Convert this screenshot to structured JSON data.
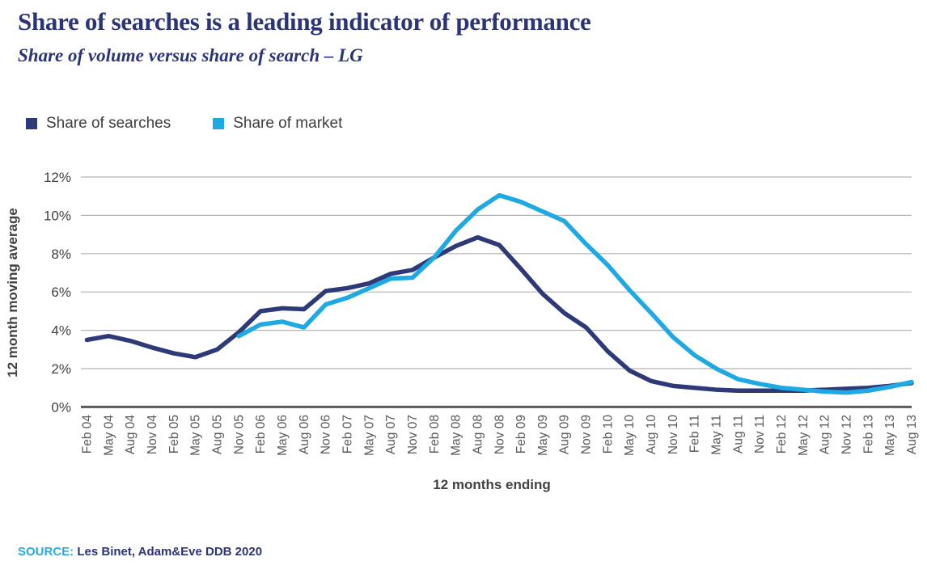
{
  "header": {
    "title": "Share of searches is a leading indicator of performance",
    "subtitle": "Share of volume versus share of search – LG"
  },
  "legend": {
    "items": [
      {
        "label": "Share of searches",
        "color": "#2e3a78"
      },
      {
        "label": "Share of market",
        "color": "#1fa9e3"
      }
    ]
  },
  "chart_data": {
    "type": "line",
    "title": "Share of volume versus share of search – LG",
    "xlabel": "12 months ending",
    "ylabel": "12 month moving average",
    "ylim": [
      0,
      12
    ],
    "yticks": [
      "0%",
      "2%",
      "4%",
      "6%",
      "8%",
      "10%",
      "12%"
    ],
    "grid": true,
    "legend_position": "top-left",
    "categories": [
      "Feb 04",
      "May 04",
      "Aug 04",
      "Nov 04",
      "Feb 05",
      "May 05",
      "Aug 05",
      "Nov 05",
      "Feb 06",
      "May 06",
      "Aug 06",
      "Nov 06",
      "Feb 07",
      "May 07",
      "Aug 07",
      "Nov 07",
      "Feb 08",
      "May 08",
      "Aug 08",
      "Nov 08",
      "Feb 09",
      "May 09",
      "Aug 09",
      "Nov 09",
      "Feb 10",
      "May 10",
      "Aug 10",
      "Nov 10",
      "Feb 11",
      "May 11",
      "Aug 11",
      "Nov 11",
      "Feb 12",
      "May 12",
      "Aug 12",
      "Nov 12",
      "Feb 13",
      "May 13",
      "Aug 13"
    ],
    "series": [
      {
        "name": "Share of searches",
        "color": "#2e3a78",
        "values": [
          3.5,
          3.7,
          3.45,
          3.1,
          2.8,
          2.6,
          3.0,
          3.9,
          5.0,
          5.15,
          5.1,
          6.05,
          6.2,
          6.45,
          6.95,
          7.15,
          7.8,
          8.4,
          8.85,
          8.45,
          7.2,
          5.9,
          4.9,
          4.15,
          2.9,
          1.9,
          1.35,
          1.1,
          1.0,
          0.9,
          0.85,
          0.85,
          0.85,
          0.85,
          0.9,
          0.95,
          1.0,
          1.1,
          1.25
        ]
      },
      {
        "name": "Share of market",
        "color": "#1fa9e3",
        "values": [
          null,
          null,
          null,
          null,
          null,
          null,
          null,
          3.7,
          4.3,
          4.45,
          4.15,
          5.35,
          5.7,
          6.2,
          6.7,
          6.75,
          7.8,
          9.2,
          10.3,
          11.05,
          10.7,
          10.2,
          9.7,
          8.5,
          7.4,
          6.1,
          4.9,
          3.65,
          2.7,
          2.0,
          1.45,
          1.2,
          1.0,
          0.9,
          0.8,
          0.75,
          0.85,
          1.05,
          1.3
        ]
      }
    ]
  },
  "source": {
    "label": "SOURCE:",
    "text": "Les Binet, Adam&Eve DDB 2020"
  }
}
